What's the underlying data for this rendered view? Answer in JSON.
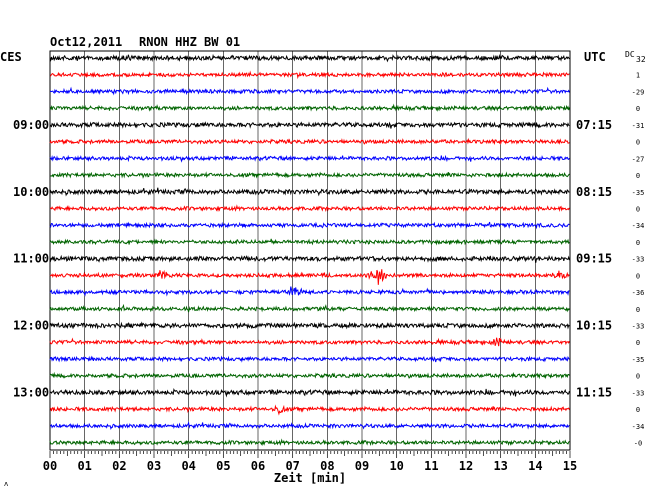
{
  "header": {
    "date": "Oct12,2011",
    "station": "RNON HHZ BW 01",
    "left_timezone": "CES",
    "right_timezone": "UTC",
    "offset_header": "DC",
    "offset_header_sub": "32"
  },
  "chart_data": {
    "type": "line",
    "title": "Oct12,2011   RNON HHZ BW 01",
    "xlabel": "Zeit [min]",
    "x_ticks": [
      "00",
      "01",
      "02",
      "03",
      "04",
      "05",
      "06",
      "07",
      "08",
      "09",
      "10",
      "11",
      "12",
      "13",
      "14",
      "15"
    ],
    "xlim": [
      0,
      15
    ],
    "grid": true,
    "trace_colors": [
      "#000000",
      "#ff0000",
      "#0000ff",
      "#006400"
    ],
    "left_hour_labels": [
      {
        "row": 4,
        "text": "09:00"
      },
      {
        "row": 8,
        "text": "10:00"
      },
      {
        "row": 12,
        "text": "11:00"
      },
      {
        "row": 16,
        "text": "12:00"
      },
      {
        "row": 20,
        "text": "13:00"
      }
    ],
    "right_hour_labels": [
      {
        "row": 4,
        "text": "07:15"
      },
      {
        "row": 8,
        "text": "08:15"
      },
      {
        "row": 12,
        "text": "09:15"
      },
      {
        "row": 16,
        "text": "10:15"
      },
      {
        "row": 20,
        "text": "11:15"
      }
    ],
    "row_offsets": [
      "",
      "1",
      "-29",
      "0",
      "-31",
      "0",
      "-27",
      "0",
      "-35",
      "0",
      "-34",
      "0",
      "-33",
      "0",
      "-36",
      "0",
      "-33",
      "0",
      "-35",
      "0",
      "-33",
      "0",
      "-34",
      "-0"
    ],
    "events": [
      {
        "row": 13,
        "minute": 9.45,
        "amplitude": 2.6
      },
      {
        "row": 13,
        "minute": 3.3,
        "amplitude": 1.3
      },
      {
        "row": 13,
        "minute": 14.7,
        "amplitude": 1.3
      },
      {
        "row": 14,
        "minute": 7.1,
        "amplitude": 1.4
      },
      {
        "row": 17,
        "minute": 12.9,
        "amplitude": 1.3
      },
      {
        "row": 21,
        "minute": 6.6,
        "amplitude": 1.3
      }
    ]
  }
}
